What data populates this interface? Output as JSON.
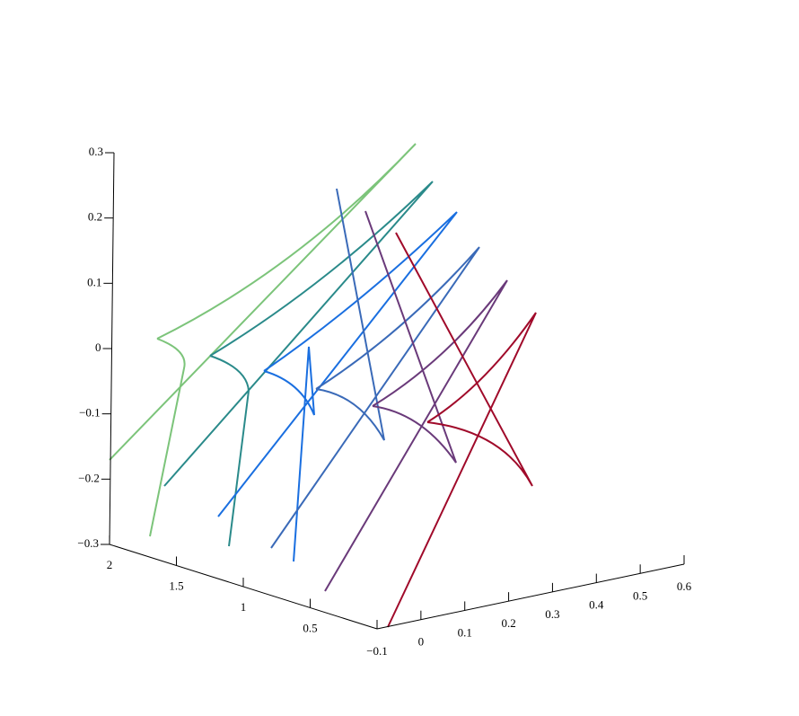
{
  "chart_data": {
    "type": "line3d",
    "xlim": [
      -0.1,
      0.6
    ],
    "xticks": [
      {
        "value": -0.1,
        "label": "−0.1"
      },
      0,
      0.1,
      0.2,
      0.3,
      0.4,
      0.5,
      0.6
    ],
    "ylim": [
      0,
      2
    ],
    "yticks": [
      0.5,
      1,
      1.5,
      2
    ],
    "zlim": [
      -0.3,
      0.3
    ],
    "zticks": [
      {
        "value": -0.3,
        "label": "−0.3"
      },
      {
        "value": -0.2,
        "label": "−0.2"
      },
      {
        "value": -0.1,
        "label": "−0.1"
      },
      0,
      0.1,
      0.2,
      0.3
    ]
  }
}
